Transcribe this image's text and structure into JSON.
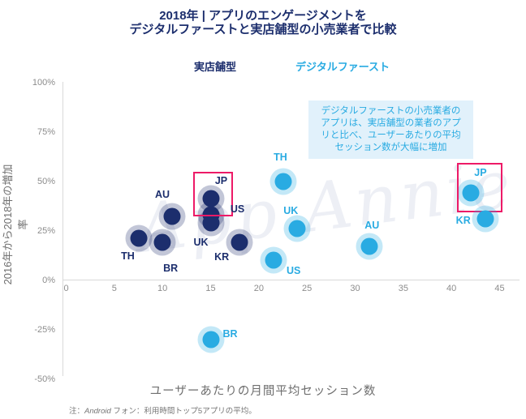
{
  "title": {
    "line1": "2018年 | アプリのエンゲージメントを",
    "line2": "デジタルファーストと実店舗型の小売業者で比較"
  },
  "legend": {
    "brick_and_mortar": "実店舗型",
    "digital_first": "デジタルファースト"
  },
  "annotation": {
    "text": "デジタルファーストの小売業者の\nアプリは、実店舗型の業者のアプ\nリと比べ、ユーザーあたりの平均\nセッション数が大幅に増加"
  },
  "watermark": "App Annie",
  "footnote": {
    "prefix": "注：",
    "brand": "Android",
    "rest": " フォン：利用時間トップ5アプリの平均。"
  },
  "colors": {
    "navy": "#1c2e6d",
    "light_blue": "#29abe2",
    "highlight": "#ed1a67",
    "annotation_bg": "#e1f1fb",
    "axis_gray": "#d9d9d9"
  },
  "chart_data": {
    "type": "scatter",
    "title": "2018年 | アプリのエンゲージメントを デジタルファーストと実店舗型の小売業者で比較",
    "xlabel": "ユーザーあたりの月間平均セッション数",
    "ylabel": "2016年から2018年の増加率",
    "xlim": [
      0,
      45
    ],
    "ylim": [
      -50,
      100
    ],
    "x_ticks": [
      0,
      5,
      10,
      15,
      20,
      25,
      30,
      35,
      40,
      45
    ],
    "y_ticks": [
      100,
      75,
      50,
      25,
      0,
      -25,
      -50
    ],
    "y_tick_suffix": "%",
    "grid": false,
    "legend_position": "top",
    "series": [
      {
        "name": "実店舗型",
        "key": "brick-and-mortar",
        "color": "#1c2e6d",
        "halo": "rgba(28,46,109,0.27)",
        "points": [
          {
            "label": "TH",
            "x": 7.5,
            "y": 21,
            "label_offset": [
              -13,
              22
            ]
          },
          {
            "label": "BR",
            "x": 10,
            "y": 19,
            "label_offset": [
              10,
              32
            ]
          },
          {
            "label": "AU",
            "x": 11,
            "y": 32,
            "label_offset": [
              -12,
              -27
            ]
          },
          {
            "label": "US",
            "x": 15,
            "y": 33,
            "label_offset": [
              33,
              -7
            ]
          },
          {
            "label": "UK",
            "x": 15,
            "y": 29,
            "label_offset": [
              -12,
              24
            ]
          },
          {
            "label": "KR",
            "x": 18,
            "y": 19,
            "label_offset": [
              -22,
              18
            ]
          },
          {
            "label": "JP",
            "x": 15,
            "y": 41,
            "label_offset": [
              13,
              -22
            ],
            "highlight": {
              "dx": -21.5,
              "dy": -33.5,
              "w": 45,
              "h": 51
            }
          }
        ]
      },
      {
        "name": "デジタルファースト",
        "key": "digital-first",
        "color": "#29abe2",
        "halo": "rgba(41,171,226,0.28)",
        "points": [
          {
            "label": "BR",
            "x": 15,
            "y": -30,
            "label_offset": [
              24,
              -7
            ]
          },
          {
            "label": "US",
            "x": 21.5,
            "y": 10,
            "label_offset": [
              25,
              13
            ]
          },
          {
            "label": "TH",
            "x": 22.5,
            "y": 50,
            "label_offset": [
              -3,
              -30
            ]
          },
          {
            "label": "UK",
            "x": 24,
            "y": 26,
            "label_offset": [
              -8,
              -22
            ]
          },
          {
            "label": "AU",
            "x": 31.5,
            "y": 17,
            "label_offset": [
              3,
              -26
            ]
          },
          {
            "label": "JP",
            "x": 42,
            "y": 44,
            "label_offset": [
              12,
              -25
            ],
            "highlight": {
              "dx": -17,
              "dy": -37,
              "w": 52,
              "h": 57
            }
          },
          {
            "label": "KR",
            "x": 43.5,
            "y": 31,
            "label_offset": [
              -27,
              2
            ]
          }
        ]
      }
    ]
  }
}
